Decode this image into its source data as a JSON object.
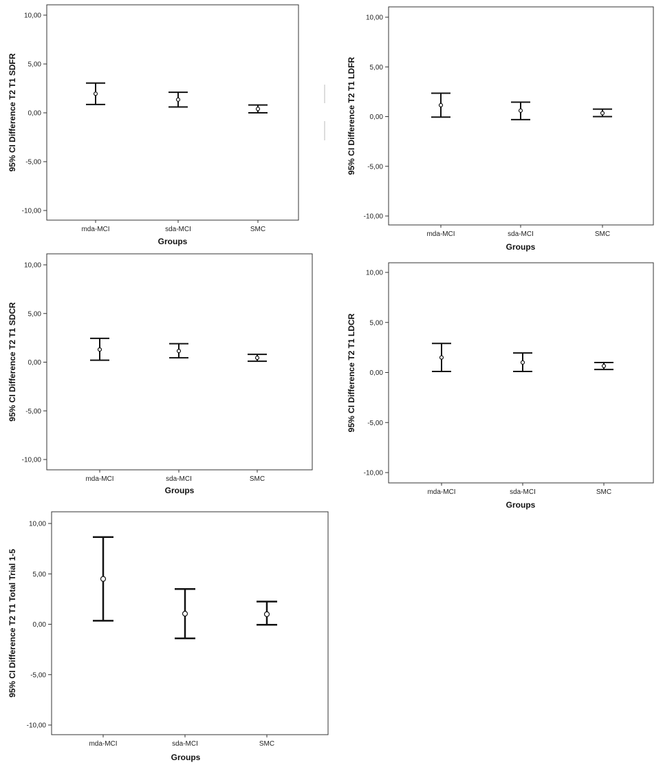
{
  "chart_data": [
    {
      "type": "errorbar",
      "xlabel": "Groups",
      "ylabel": "95% CI Difference T2 T1 SDFR",
      "categories": [
        "mda-MCI",
        "sda-MCI",
        "SMC"
      ],
      "yticks": [
        "10,00",
        "5,00",
        "0,00",
        "-5,00",
        "-10,00"
      ],
      "ylim": [
        -11,
        11
      ],
      "series": [
        {
          "mean": [
            1.95,
            1.35,
            0.4
          ],
          "lower": [
            0.85,
            0.6,
            0.0
          ],
          "upper": [
            3.05,
            2.1,
            0.8
          ]
        }
      ]
    },
    {
      "type": "errorbar",
      "xlabel": "Groups",
      "ylabel": "95% CI Difference T2 T1 LDFR",
      "categories": [
        "mda-MCI",
        "sda-MCI",
        "SMC"
      ],
      "yticks": [
        "10,00",
        "5,00",
        "0,00",
        "-5,00",
        "-10,00"
      ],
      "ylim": [
        -11,
        11
      ],
      "series": [
        {
          "mean": [
            1.15,
            0.6,
            0.35
          ],
          "lower": [
            -0.05,
            -0.3,
            0.0
          ],
          "upper": [
            2.35,
            1.45,
            0.75
          ]
        }
      ]
    },
    {
      "type": "errorbar",
      "xlabel": "Groups",
      "ylabel": "95% CI Difference T2 T1 SDCR",
      "categories": [
        "mda-MCI",
        "sda-MCI",
        "SMC"
      ],
      "yticks": [
        "10,00",
        "5,00",
        "0,00",
        "-5,00",
        "-10,00"
      ],
      "ylim": [
        -11,
        11
      ],
      "series": [
        {
          "mean": [
            1.3,
            1.15,
            0.45
          ],
          "lower": [
            0.2,
            0.45,
            0.1
          ],
          "upper": [
            2.45,
            1.9,
            0.8
          ]
        }
      ]
    },
    {
      "type": "errorbar",
      "xlabel": "Groups",
      "ylabel": "95% CI Difference T2 T1 LDCR",
      "categories": [
        "mda-MCI",
        "sda-MCI",
        "SMC"
      ],
      "yticks": [
        "10,00",
        "5,00",
        "0,00",
        "-5,00",
        "-10,00"
      ],
      "ylim": [
        -11,
        11
      ],
      "series": [
        {
          "mean": [
            1.5,
            1.0,
            0.65
          ],
          "lower": [
            0.1,
            0.1,
            0.3
          ],
          "upper": [
            2.9,
            1.95,
            1.0
          ]
        }
      ]
    },
    {
      "type": "errorbar",
      "xlabel": "Groups",
      "ylabel": "95% CI Difference T2 T1 Total Trial 1-5",
      "categories": [
        "mda-MCI",
        "sda-MCI",
        "SMC"
      ],
      "yticks": [
        "10,00",
        "5,00",
        "0,00",
        "-5,00",
        "-10,00"
      ],
      "ylim": [
        -11,
        11
      ],
      "series": [
        {
          "mean": [
            4.5,
            1.05,
            1.0
          ],
          "lower": [
            0.35,
            -1.4,
            -0.05
          ],
          "upper": [
            8.65,
            3.5,
            2.25
          ]
        }
      ]
    }
  ]
}
